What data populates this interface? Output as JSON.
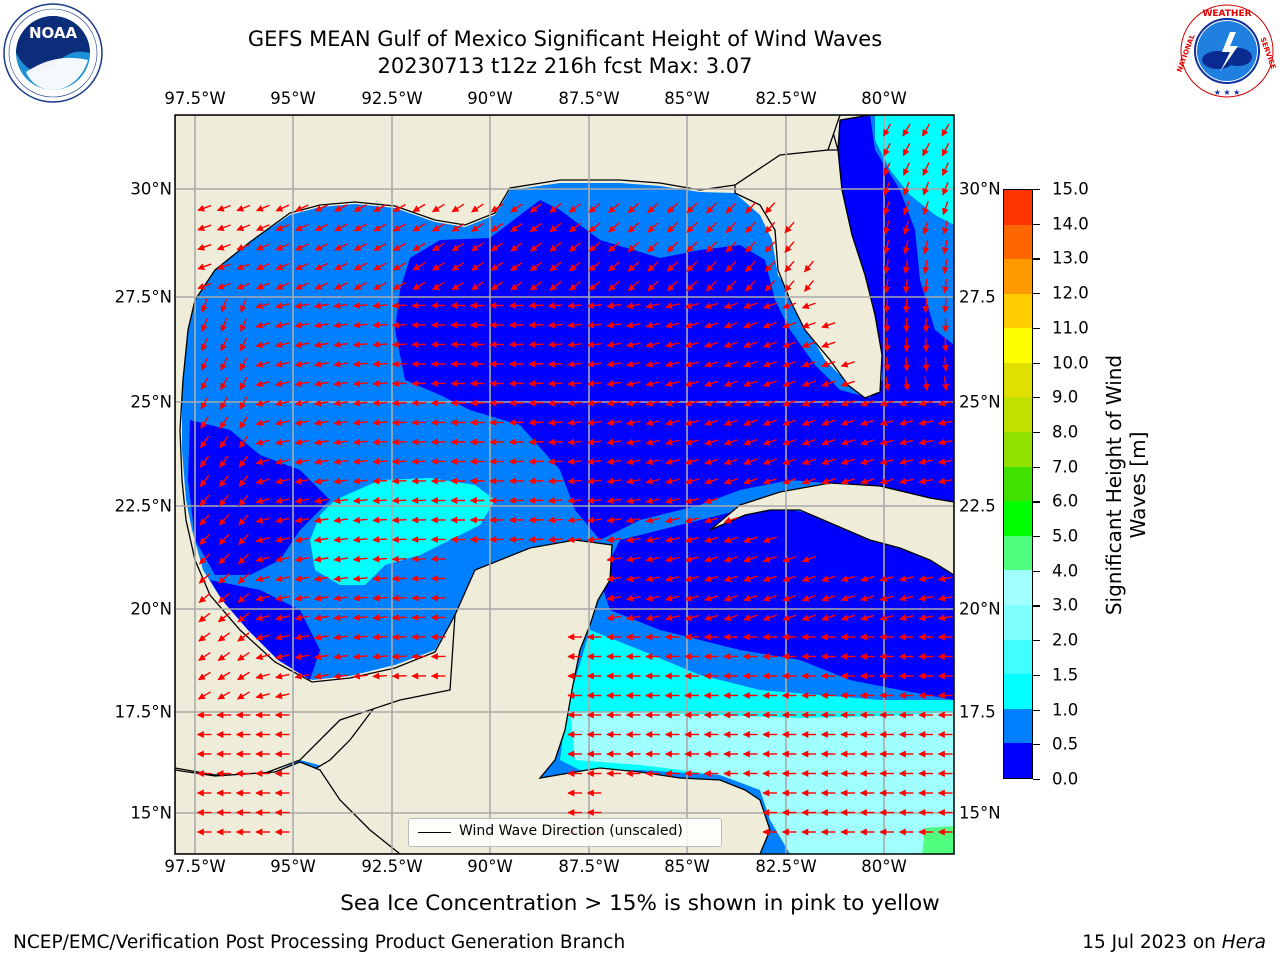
{
  "title": {
    "line1": "GEFS MEAN Gulf of Mexico Significant Height of Wind Waves",
    "line2": "20230713 t12z 216h fcst   Max: 3.07"
  },
  "axes": {
    "lon_labels": [
      "97.5°W",
      "95°W",
      "92.5°W",
      "90°W",
      "87.5°W",
      "85°W",
      "82.5°W",
      "80°W"
    ],
    "lat_labels_left": [
      "30°N",
      "27.5°N",
      "25°N",
      "22.5°N",
      "20°N",
      "17.5°N",
      "15°N"
    ],
    "lat_labels_right": [
      "30°N",
      "27.5",
      "25°N",
      "22.5",
      "20°N",
      "17.5",
      "15°N"
    ]
  },
  "legend": {
    "label": "Wind Wave Direction (unscaled)"
  },
  "colorbar": {
    "title": "Significant Height of Wind Waves [m]",
    "ticks": [
      "0.0",
      "0.5",
      "1.0",
      "1.5",
      "2.0",
      "3.0",
      "4.0",
      "5.0",
      "6.0",
      "7.0",
      "8.0",
      "9.0",
      "10.0",
      "11.0",
      "12.0",
      "13.0",
      "14.0",
      "15.0"
    ],
    "colors": [
      "#0000ff",
      "#0080ff",
      "#00ffff",
      "#40ffff",
      "#80ffff",
      "#a0ffff",
      "#50ff80",
      "#00ff00",
      "#40e000",
      "#90e000",
      "#c0e000",
      "#e0e000",
      "#ffff00",
      "#ffcc00",
      "#ff9900",
      "#ff6600",
      "#ff3300",
      "#ff0000"
    ]
  },
  "notes": {
    "ice": "Sea Ice Concentration > 15% is shown in pink to yellow",
    "credit": "NCEP/EMC/Verification Post Processing Product Generation Branch",
    "date": "15 Jul 2023 on ",
    "date_host": "Hera"
  },
  "logos": {
    "noaa_text": "NOAA",
    "noaa_ring": "NATIONAL OCEANIC AND ATMOSPHERIC ADMINISTRATION · U.S. DEPARTMENT OF COMMERCE",
    "nws_ring": "NATIONAL WEATHER SERVICE"
  },
  "map_colors": {
    "land": "#efedda",
    "ocean_lt05": "#0000ff",
    "ocean_05_1": "#0080ff",
    "ocean_1_15": "#00ffff",
    "ocean_15_2": "#40ffff",
    "ocean_2_3": "#a0ffff",
    "ocean_3_4": "#50ff80",
    "arrows": "#ff0000",
    "grid": "#aaaaaa"
  }
}
